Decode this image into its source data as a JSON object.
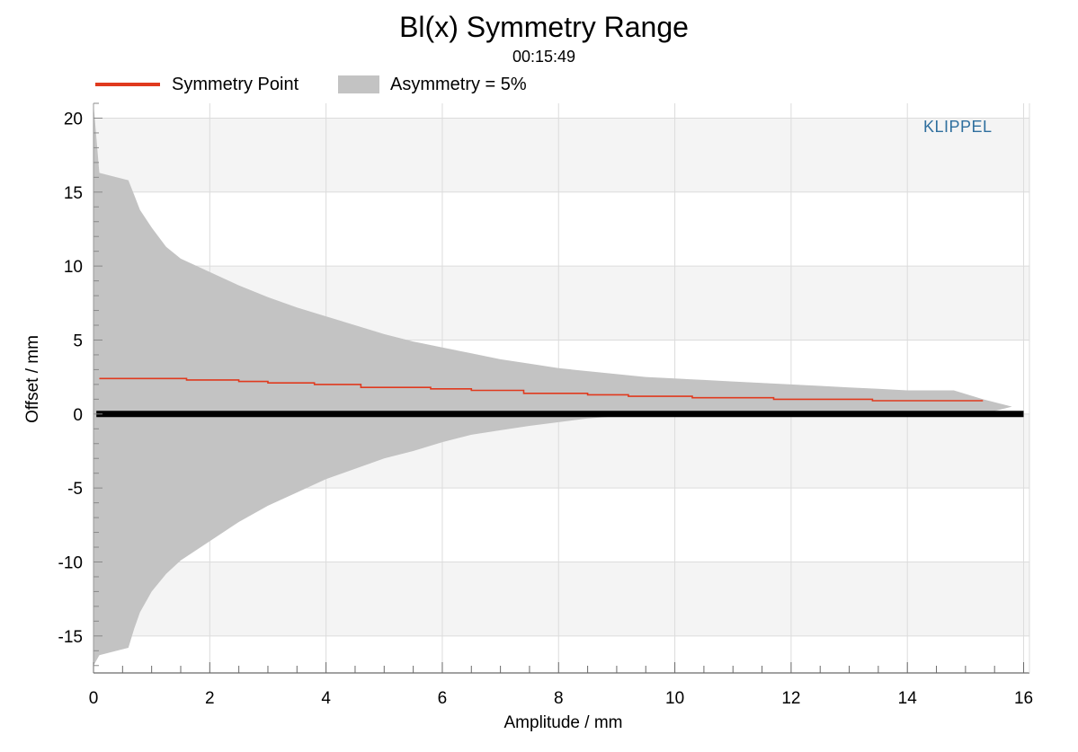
{
  "chart_data": {
    "type": "area",
    "title": "Bl(x) Symmetry Range",
    "subtitle": "00:15:49",
    "xlabel": "Amplitude / mm",
    "ylabel": "Offset / mm",
    "xlim": [
      0,
      16.1
    ],
    "ylim": [
      -17.5,
      21
    ],
    "x_ticks": [
      0,
      2,
      4,
      6,
      8,
      10,
      12,
      14,
      16
    ],
    "y_ticks": [
      20,
      15,
      10,
      5,
      0,
      -5,
      -10,
      -15
    ],
    "grid": true,
    "legend_position": "top-left",
    "legend": {
      "line_label": "Symmetry Point",
      "area_label": "Asymmetry = 5%"
    },
    "watermark": "KLIPPEL",
    "series": [
      {
        "name": "Asymmetry = 5%",
        "type": "band",
        "color": "#c3c3c3",
        "x": [
          0,
          0.1,
          0.6,
          0.7,
          0.8,
          1.0,
          1.25,
          1.5,
          2.0,
          2.5,
          3.0,
          3.5,
          4.0,
          4.5,
          5.0,
          5.5,
          6.0,
          6.5,
          7.0,
          7.5,
          8.0,
          8.5,
          9.0,
          9.5,
          10.0,
          10.5,
          11.0,
          11.5,
          12.0,
          12.5,
          13.0,
          13.5,
          14.0,
          14.5,
          14.8,
          15.3,
          15.8
        ],
        "upper": [
          21,
          16.3,
          15.8,
          14.8,
          13.8,
          12.6,
          11.3,
          10.5,
          9.6,
          8.7,
          7.9,
          7.2,
          6.6,
          6.0,
          5.4,
          4.9,
          4.5,
          4.1,
          3.7,
          3.4,
          3.1,
          2.9,
          2.7,
          2.5,
          2.4,
          2.3,
          2.2,
          2.1,
          2.0,
          1.9,
          1.8,
          1.7,
          1.6,
          1.6,
          1.6,
          1.0,
          0.5
        ],
        "lower": [
          -17,
          -16.3,
          -15.8,
          -14.5,
          -13.4,
          -12.0,
          -10.8,
          -9.9,
          -8.6,
          -7.3,
          -6.2,
          -5.3,
          -4.4,
          -3.7,
          -3.0,
          -2.5,
          -1.9,
          -1.4,
          -1.1,
          -0.8,
          -0.55,
          -0.3,
          -0.15,
          -0.05,
          0.0,
          0.0,
          0.0,
          0.0,
          0.0,
          0.0,
          0.0,
          0.0,
          0.0,
          0.0,
          0.0,
          0.0,
          0.5
        ]
      },
      {
        "name": "Symmetry Point",
        "type": "step",
        "color": "#e03a1e",
        "x": [
          0.1,
          1.6,
          1.6,
          2.5,
          2.5,
          3.0,
          3.0,
          3.8,
          3.8,
          4.6,
          4.6,
          5.8,
          5.8,
          6.5,
          6.5,
          7.4,
          7.4,
          8.5,
          8.5,
          9.2,
          9.2,
          10.3,
          10.3,
          11.7,
          11.7,
          13.4,
          13.4,
          15.3
        ],
        "y": [
          2.4,
          2.4,
          2.3,
          2.3,
          2.2,
          2.2,
          2.1,
          2.1,
          2.0,
          2.0,
          1.8,
          1.8,
          1.7,
          1.7,
          1.6,
          1.6,
          1.4,
          1.4,
          1.3,
          1.3,
          1.2,
          1.2,
          1.1,
          1.1,
          1.0,
          1.0,
          0.9,
          0.9
        ]
      },
      {
        "name": "",
        "type": "line",
        "color": "#000000",
        "x": [
          0.05,
          16.0
        ],
        "y": [
          0,
          0
        ]
      }
    ]
  }
}
